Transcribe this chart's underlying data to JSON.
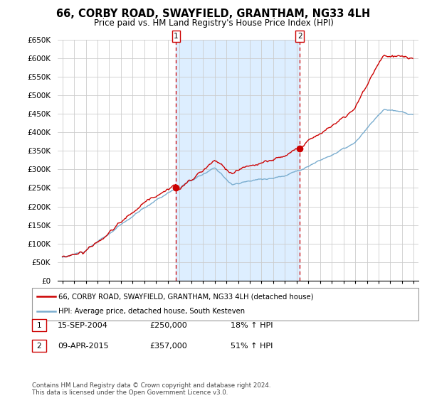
{
  "title": "66, CORBY ROAD, SWAYFIELD, GRANTHAM, NG33 4LH",
  "subtitle": "Price paid vs. HM Land Registry's House Price Index (HPI)",
  "ylabel_ticks": [
    "£0",
    "£50K",
    "£100K",
    "£150K",
    "£200K",
    "£250K",
    "£300K",
    "£350K",
    "£400K",
    "£450K",
    "£500K",
    "£550K",
    "£600K",
    "£650K"
  ],
  "ytick_values": [
    0,
    50000,
    100000,
    150000,
    200000,
    250000,
    300000,
    350000,
    400000,
    450000,
    500000,
    550000,
    600000,
    650000
  ],
  "red_line_color": "#cc0000",
  "blue_line_color": "#7aadcf",
  "shade_color": "#ddeeff",
  "marker_box_color": "#cc0000",
  "background_color": "#ffffff",
  "grid_color": "#cccccc",
  "transaction1": {
    "date": "15-SEP-2004",
    "price": 250000,
    "pct": "18%",
    "label": "1",
    "x": 2004.71
  },
  "transaction2": {
    "date": "09-APR-2015",
    "price": 357000,
    "pct": "51%",
    "label": "2",
    "x": 2015.28
  },
  "legend_line1": "66, CORBY ROAD, SWAYFIELD, GRANTHAM, NG33 4LH (detached house)",
  "legend_line2": "HPI: Average price, detached house, South Kesteven",
  "footer": "Contains HM Land Registry data © Crown copyright and database right 2024.\nThis data is licensed under the Open Government Licence v3.0.",
  "xlim_left": 1994.6,
  "xlim_right": 2025.4,
  "ylim_bottom": 0,
  "ylim_top": 650000
}
